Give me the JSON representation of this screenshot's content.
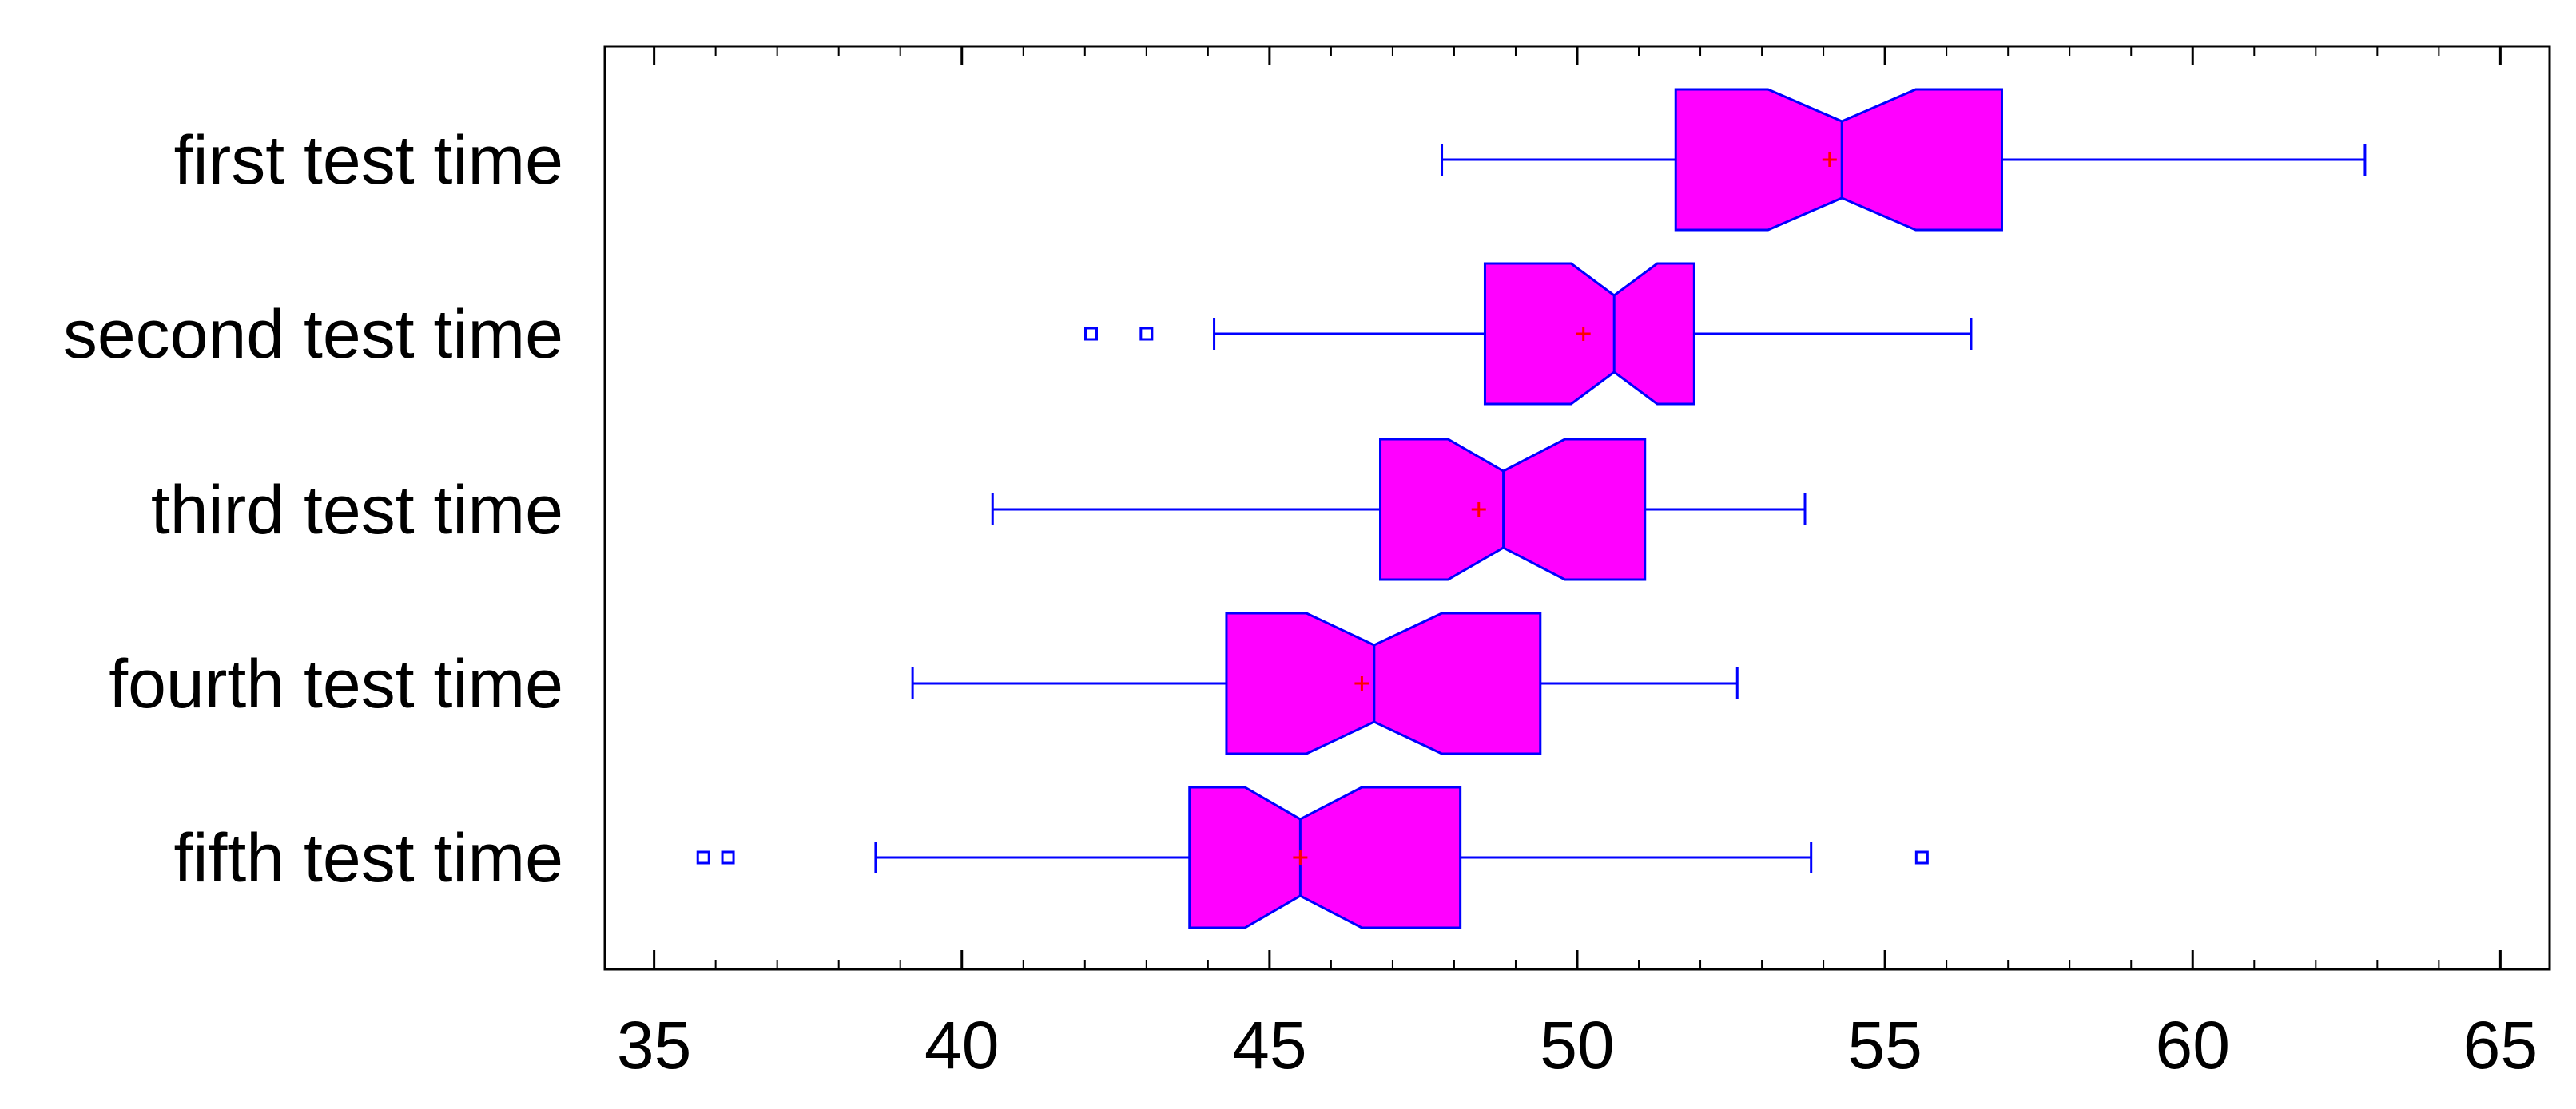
{
  "chart_data": {
    "type": "box",
    "orientation": "horizontal",
    "notched": true,
    "title": "",
    "xlabel": "",
    "ylabel": "",
    "xlim": [
      34.2,
      65.8
    ],
    "ticks": [
      35,
      40,
      45,
      50,
      55,
      60,
      65
    ],
    "tick_labels": [
      "35",
      "40",
      "45",
      "50",
      "55",
      "60",
      "65"
    ],
    "grid": false,
    "categories": [
      "first test time",
      "second test time",
      "third test time",
      "fourth test time",
      "fifth test time"
    ],
    "series": [
      {
        "category": "first test time",
        "whisker_low": 47.8,
        "q1": 51.6,
        "notch_low": 53.1,
        "median": 54.3,
        "notch_high": 55.5,
        "q3": 56.9,
        "whisker_high": 62.8,
        "mean": 54.1,
        "outliers": []
      },
      {
        "category": "second test time",
        "whisker_low": 44.1,
        "q1": 48.5,
        "notch_low": 49.9,
        "median": 50.6,
        "notch_high": 51.3,
        "q3": 51.9,
        "whisker_high": 56.4,
        "mean": 50.1,
        "outliers": [
          42.1,
          43.0
        ]
      },
      {
        "category": "third test time",
        "whisker_low": 40.5,
        "q1": 46.8,
        "notch_low": 47.9,
        "median": 48.8,
        "notch_high": 49.8,
        "q3": 51.1,
        "whisker_high": 53.7,
        "mean": 48.4,
        "outliers": []
      },
      {
        "category": "fourth test time",
        "whisker_low": 39.2,
        "q1": 44.3,
        "notch_low": 45.6,
        "median": 46.7,
        "notch_high": 47.8,
        "q3": 49.4,
        "whisker_high": 52.6,
        "mean": 46.5,
        "outliers": []
      },
      {
        "category": "fifth test time",
        "whisker_low": 38.6,
        "q1": 43.7,
        "notch_low": 44.6,
        "median": 45.5,
        "notch_high": 46.5,
        "q3": 48.1,
        "whisker_high": 53.8,
        "mean": 45.5,
        "outliers": [
          35.8,
          36.2,
          55.6
        ]
      }
    ],
    "colors": {
      "box_fill": "#ff00ff",
      "box_stroke": "#0000ff",
      "whisker": "#0000ff",
      "outlier": "#0000ff",
      "mean_marker": "#ff0000",
      "axis": "#000000"
    }
  }
}
